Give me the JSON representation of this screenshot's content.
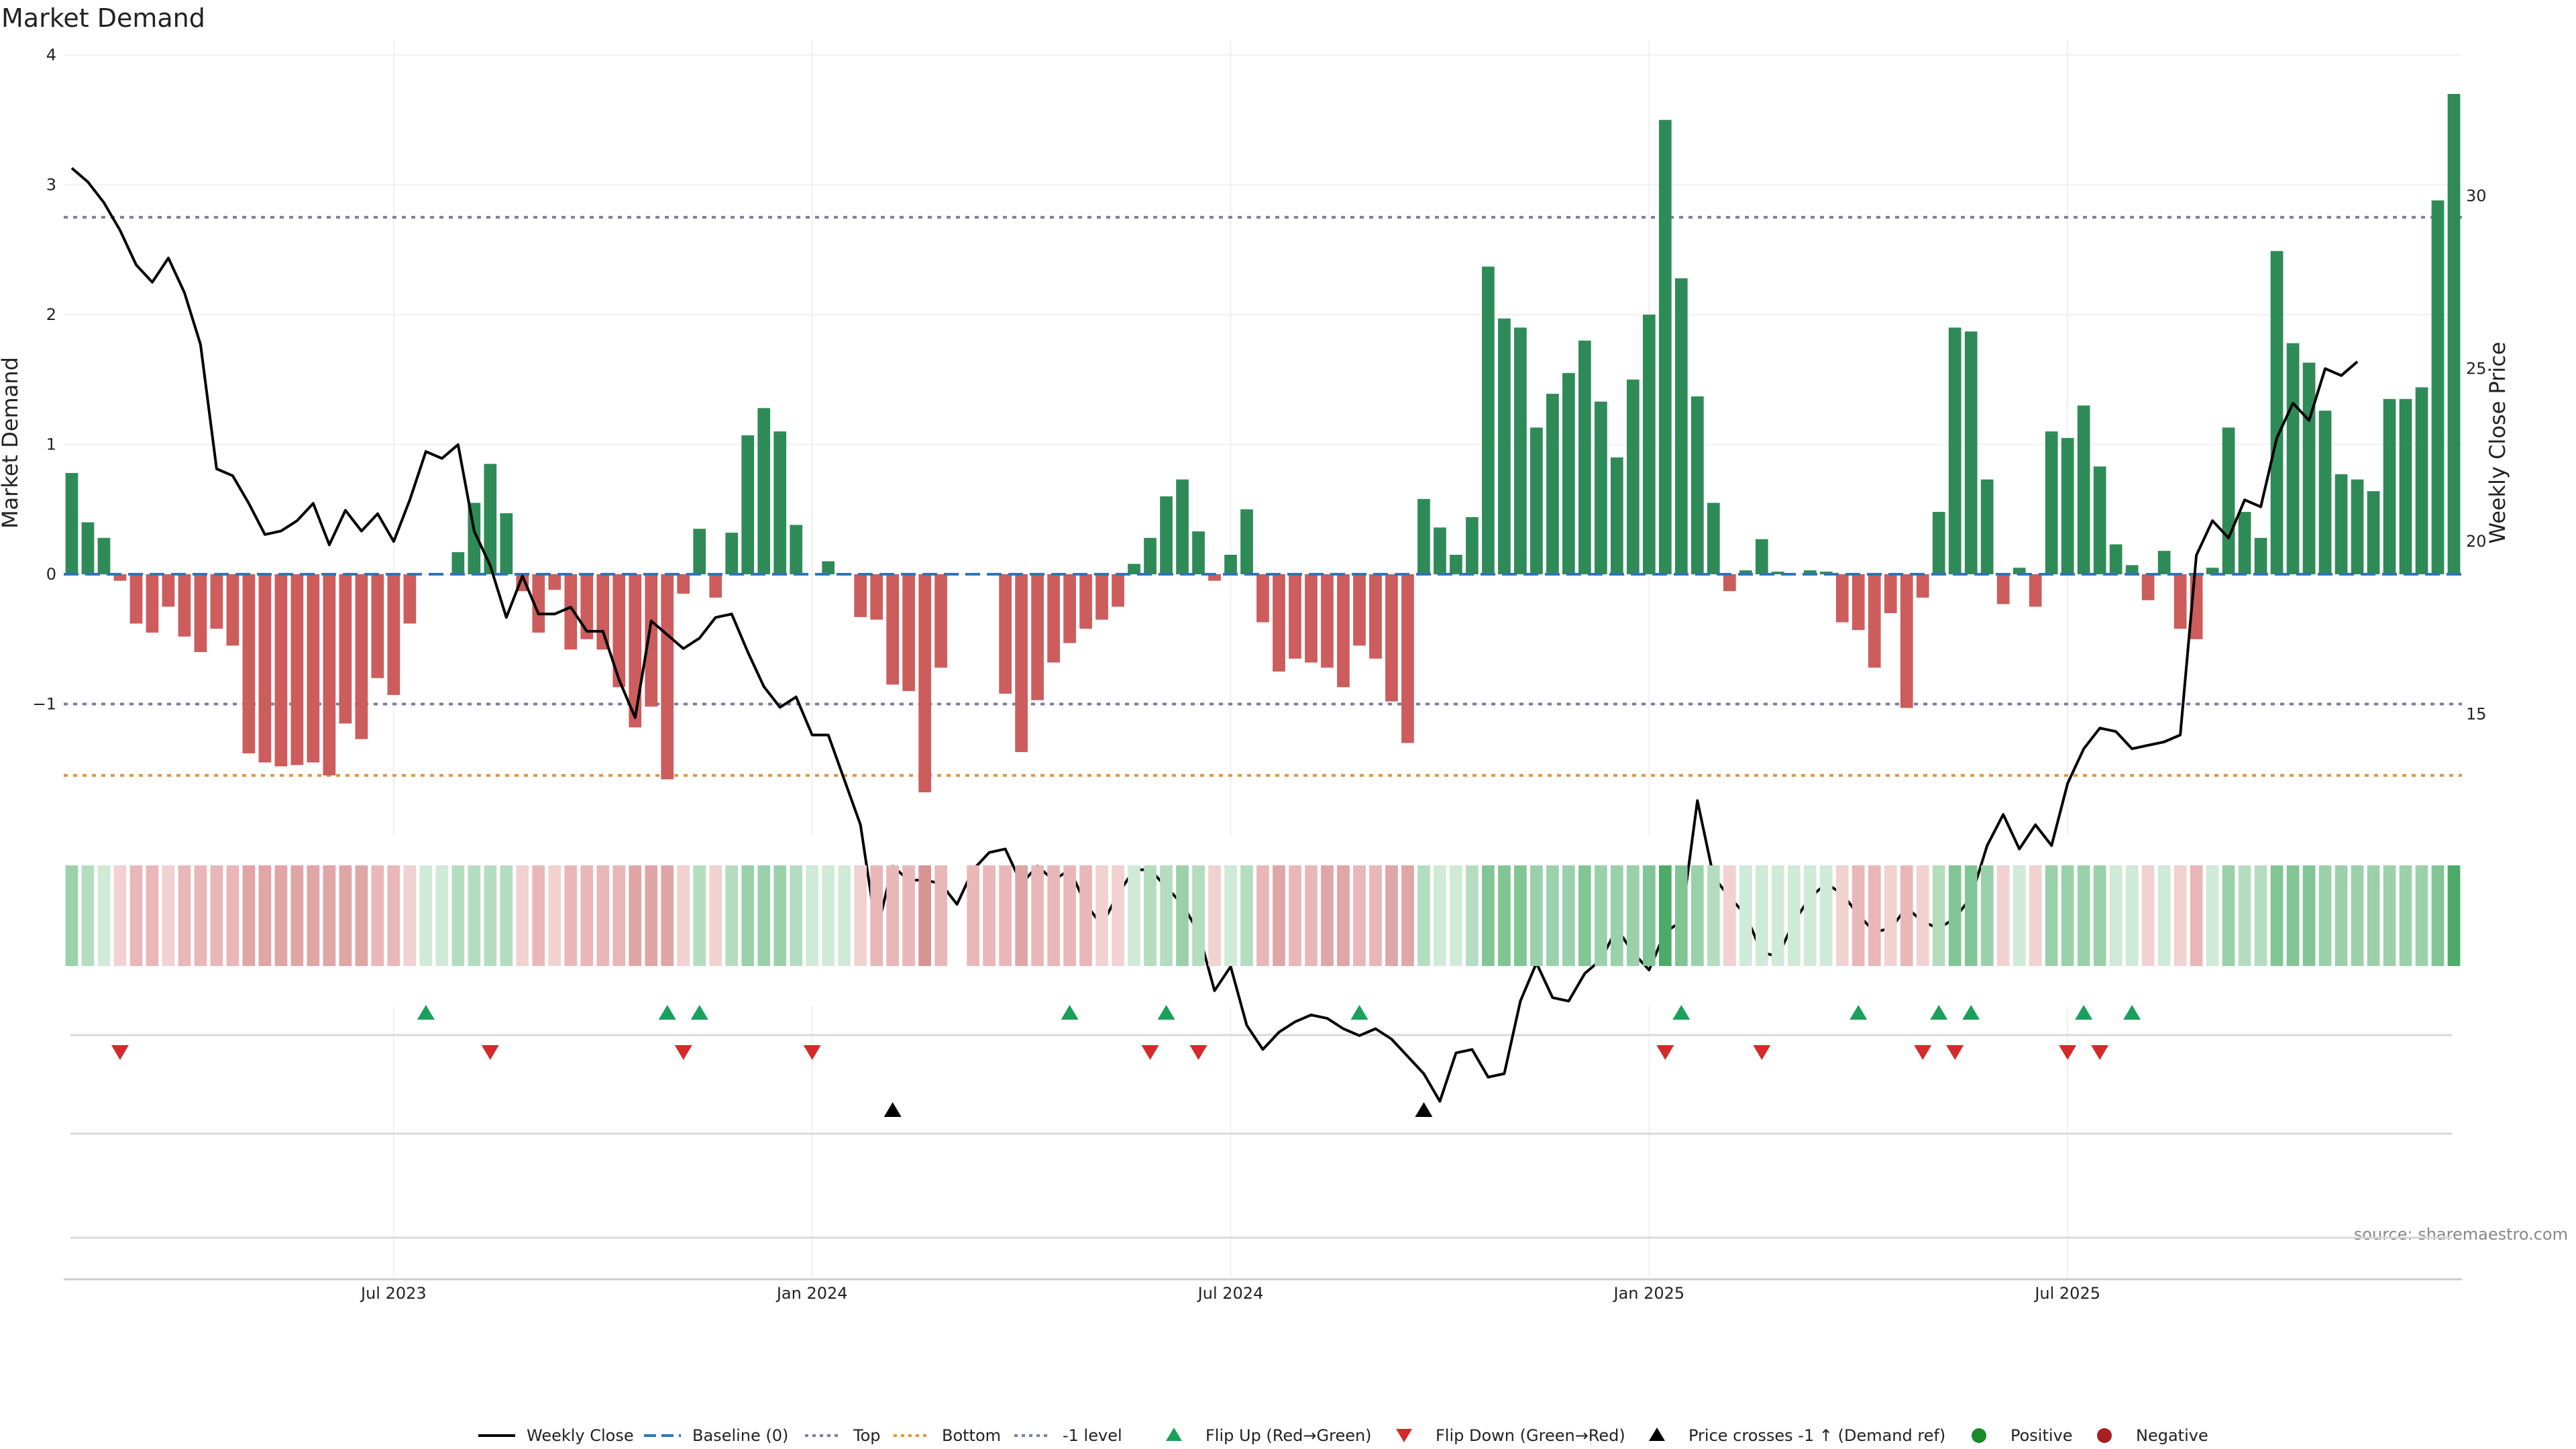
{
  "chart_data": {
    "type": "bar",
    "title": "Market Demand",
    "ylabel": "Market Demand",
    "y2label": "Weekly Close Price",
    "ylim": [
      -2,
      4
    ],
    "y_ticks": [
      4,
      3,
      2,
      1,
      0,
      -1
    ],
    "y_tick_labels": [
      "4",
      "3",
      "2",
      "1",
      "0",
      "−1"
    ],
    "y2lim": [
      11.5,
      34.5
    ],
    "y2_ticks": [
      30,
      25,
      20,
      15
    ],
    "y2_tick_labels": [
      "30",
      "25",
      "20",
      "15"
    ],
    "reference_lines": {
      "top": 2.75,
      "minus_one_level": -1,
      "bottom": -1.55,
      "baseline": 0
    },
    "x_ticks": [
      {
        "label": "Jul 2023",
        "week": 20
      },
      {
        "label": "Jan 2024",
        "week": 46
      },
      {
        "label": "Jul 2024",
        "week": 72
      },
      {
        "label": "Jan 2025",
        "week": 98
      },
      {
        "label": "Jul 2025",
        "week": 124
      }
    ],
    "demand": [
      0.78,
      0.4,
      0.28,
      -0.05,
      -0.38,
      -0.45,
      -0.25,
      -0.48,
      -0.6,
      -0.42,
      -0.55,
      -1.38,
      -1.45,
      -1.48,
      -1.47,
      -1.45,
      -1.55,
      -1.15,
      -1.27,
      -0.8,
      -0.93,
      -0.38,
      0,
      0,
      0.17,
      0.55,
      0.85,
      0.47,
      -0.13,
      -0.45,
      -0.12,
      -0.58,
      -0.5,
      -0.58,
      -0.87,
      -1.18,
      -1.02,
      -1.58,
      -0.15,
      0.35,
      -0.18,
      0.32,
      1.07,
      1.28,
      1.1,
      0.38,
      0,
      0.1,
      0,
      -0.33,
      -0.35,
      -0.85,
      -0.9,
      -1.68,
      -0.72,
      0,
      0,
      0,
      -0.92,
      -1.37,
      -0.97,
      -0.68,
      -0.53,
      -0.42,
      -0.35,
      -0.25,
      0.08,
      0.28,
      0.6,
      0.73,
      0.33,
      -0.05,
      0.15,
      0.5,
      -0.37,
      -0.75,
      -0.65,
      -0.68,
      -0.72,
      -0.87,
      -0.55,
      -0.65,
      -0.98,
      -1.3,
      0.58,
      0.36,
      0.15,
      0.44,
      2.37,
      1.97,
      1.9,
      1.13,
      1.39,
      1.55,
      1.8,
      1.33,
      0.9,
      1.5,
      2.0,
      3.5,
      2.28,
      1.37,
      0.55,
      -0.13,
      0.03,
      0.27,
      0.02,
      0,
      0.03,
      0.02,
      -0.37,
      -0.43,
      -0.72,
      -0.3,
      -1.03,
      -0.18,
      0.48,
      1.9,
      1.87,
      0.73,
      -0.23,
      0.05,
      -0.25,
      1.1,
      1.05,
      1.3,
      0.83,
      0.23,
      0.07,
      -0.2,
      0.18,
      -0.42,
      -0.5,
      0.05,
      1.13,
      0.48,
      0.28,
      2.49,
      1.78,
      1.63,
      1.26,
      0.77,
      0.73,
      0.64,
      1.35,
      1.35,
      1.44,
      2.88,
      3.7
    ],
    "weekly_close": [
      30.8,
      30.4,
      29.8,
      29.0,
      28.0,
      27.5,
      28.2,
      27.2,
      25.7,
      22.1,
      21.9,
      21.1,
      20.2,
      20.3,
      20.6,
      21.1,
      19.9,
      20.9,
      20.3,
      20.8,
      20.0,
      21.2,
      22.6,
      22.4,
      22.8,
      20.3,
      19.3,
      17.8,
      19.0,
      17.9,
      17.9,
      18.1,
      17.4,
      17.4,
      16.0,
      14.9,
      17.7,
      17.3,
      16.9,
      17.2,
      17.8,
      17.9,
      16.8,
      15.8,
      15.2,
      15.5,
      14.4,
      14.4,
      13.1,
      11.8,
      8.7,
      10.6,
      10.2,
      10.2,
      10.1,
      9.5,
      10.5,
      11.0,
      11.1,
      10.1,
      10.6,
      10.2,
      10.5,
      9.5,
      8.9,
      9.8,
      10.5,
      10.5,
      10.0,
      9.5,
      8.7,
      7.0,
      7.7,
      6.0,
      5.3,
      5.8,
      6.1,
      6.3,
      6.2,
      5.9,
      5.7,
      5.9,
      5.6,
      5.1,
      4.6,
      3.8,
      5.2,
      5.3,
      4.5,
      4.6,
      6.7,
      7.8,
      6.8,
      6.7,
      7.5,
      7.9,
      8.8,
      8.1,
      7.6,
      8.7,
      9.0,
      12.5,
      10.3,
      9.7,
      9.2,
      8.1,
      8.0,
      9.0,
      9.7,
      10.1,
      9.8,
      9.2,
      8.7,
      8.8,
      9.4,
      9.0,
      8.8,
      9.1,
      9.7,
      11.2,
      12.1,
      11.1,
      11.8,
      11.2,
      13.0,
      14.0,
      14.6,
      14.5,
      14.0,
      14.1,
      14.2,
      14.4,
      19.6,
      20.6,
      20.1,
      21.2,
      21.0,
      23.0,
      24.0,
      23.5,
      25.0,
      24.8,
      25.2
    ],
    "color_strip": [
      3,
      2,
      1,
      -1,
      -2,
      -2,
      -1,
      -2,
      -2,
      -2,
      -2,
      -3,
      -3,
      -3,
      -3,
      -3,
      -3,
      -3,
      -3,
      -2,
      -2,
      -1,
      1,
      1,
      2,
      2,
      2,
      2,
      -1,
      -2,
      -1,
      -2,
      -2,
      -2,
      -2,
      -3,
      -3,
      -3,
      -1,
      2,
      -1,
      2,
      3,
      3,
      3,
      2,
      1,
      1,
      1,
      -1,
      -2,
      -2,
      -2,
      -4,
      -2,
      0,
      -2,
      -2,
      -2,
      -3,
      -2,
      -2,
      -2,
      -2,
      -1,
      -1,
      1,
      2,
      2,
      3,
      2,
      -1,
      1,
      2,
      -2,
      -3,
      -2,
      -2,
      -3,
      -3,
      -2,
      -2,
      -3,
      -3,
      2,
      1,
      1,
      2,
      4,
      4,
      4,
      3,
      3,
      3,
      4,
      3,
      3,
      3,
      4,
      5,
      4,
      3,
      2,
      -1,
      1,
      1,
      1,
      1,
      1,
      1,
      -1,
      -2,
      -2,
      -1,
      -2,
      -1,
      2,
      4,
      4,
      3,
      -1,
      1,
      -1,
      3,
      3,
      3,
      3,
      1,
      1,
      -1,
      1,
      -1,
      -2,
      1,
      3,
      2,
      2,
      4,
      4,
      4,
      3,
      3,
      3,
      3,
      3,
      3,
      3,
      4,
      5
    ],
    "flip_up_weeks": [
      22,
      37,
      39,
      62,
      68,
      80,
      100,
      111,
      116,
      118,
      125,
      128
    ],
    "flip_down_weeks": [
      3,
      26,
      38,
      46,
      67,
      70,
      99,
      105,
      115,
      117,
      124,
      126
    ],
    "price_cross_weeks": [
      51,
      84
    ],
    "legend": [
      "Weekly Close",
      "Baseline (0)",
      "Top",
      "Bottom",
      "-1 level",
      "Flip Up (Red→Green)",
      "Flip Down (Green→Red)",
      "Price crosses -1 ↑ (Demand ref)",
      "Positive",
      "Negative"
    ],
    "source": "source: sharemaestro.com",
    "colors": {
      "positive_bar": "#2e8b57",
      "negative_bar": "#cd5c5c",
      "price_line": "#000000",
      "top_line": "#7d7d9e",
      "bottom_line": "#e8913a",
      "baseline": "#2e75b6",
      "flip_up": "#1aa05a",
      "flip_down": "#d42a2a",
      "positive_dot": "#1a8a2a",
      "negative_dot": "#a52020"
    }
  }
}
